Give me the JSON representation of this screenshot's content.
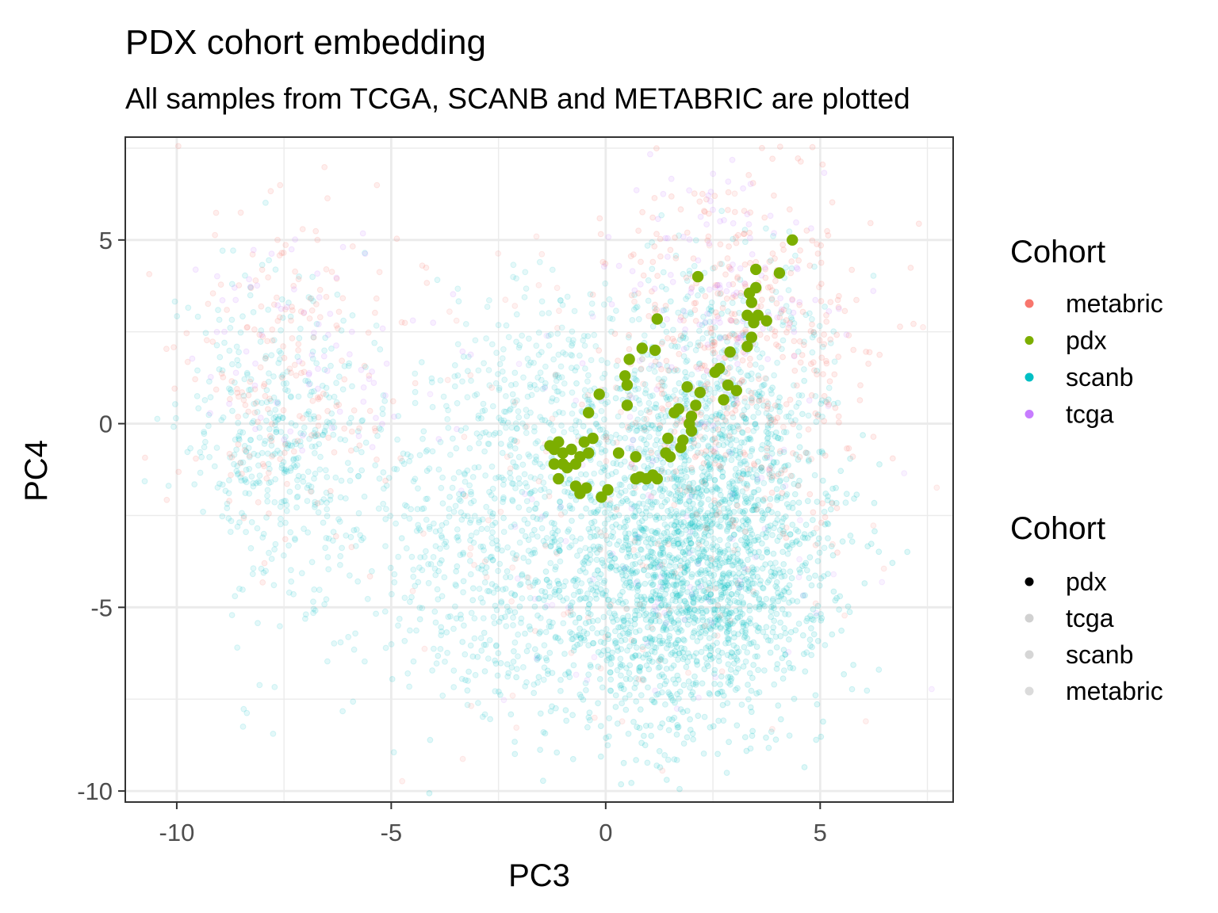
{
  "chart_data": {
    "type": "scatter",
    "title": "PDX cohort embedding",
    "subtitle": "All samples from TCGA, SCANB and METABRIC are plotted",
    "xlabel": "PC3",
    "ylabel": "PC4",
    "xlim": [
      -11.2,
      8.1
    ],
    "ylim": [
      -10.3,
      7.8
    ],
    "x_ticks": [
      "-10",
      "-5",
      "0",
      "5"
    ],
    "x_tick_values": [
      -10,
      -5,
      0,
      5
    ],
    "y_ticks": [
      "-10",
      "-5",
      "0",
      "5"
    ],
    "y_tick_values": [
      -10,
      -5,
      0,
      5
    ],
    "grid": true,
    "legend_placement": "right",
    "colors": {
      "metabric": "#F8766D",
      "pdx": "#7CAE00",
      "scanb": "#00BFC4",
      "tcga": "#C77CFF"
    },
    "legend_color": {
      "title": "Cohort",
      "items": [
        "metabric",
        "pdx",
        "scanb",
        "tcga"
      ]
    },
    "legend_alpha": {
      "title": "Cohort",
      "items": [
        "pdx",
        "tcga",
        "scanb",
        "metabric"
      ]
    },
    "series": [
      {
        "name": "pdx",
        "points": [
          [
            -1.3,
            -0.6
          ],
          [
            -1.2,
            -0.7
          ],
          [
            -1.1,
            -0.5
          ],
          [
            -1.0,
            -0.8
          ],
          [
            -1.2,
            -1.1
          ],
          [
            -1.0,
            -1.1
          ],
          [
            -0.9,
            -1.2
          ],
          [
            -0.8,
            -0.7
          ],
          [
            -0.7,
            -1.1
          ],
          [
            -0.6,
            -0.9
          ],
          [
            -0.5,
            -0.5
          ],
          [
            -0.4,
            -0.8
          ],
          [
            -0.3,
            -0.4
          ],
          [
            -0.4,
            0.3
          ],
          [
            -0.15,
            0.8
          ],
          [
            -1.1,
            -1.5
          ],
          [
            -0.7,
            -1.7
          ],
          [
            -0.6,
            -1.9
          ],
          [
            -0.45,
            -1.75
          ],
          [
            -0.1,
            -2.0
          ],
          [
            0.05,
            -1.8
          ],
          [
            0.3,
            -0.8
          ],
          [
            0.45,
            1.3
          ],
          [
            0.5,
            1.05
          ],
          [
            0.5,
            0.5
          ],
          [
            0.55,
            1.75
          ],
          [
            0.7,
            -0.9
          ],
          [
            0.7,
            -1.5
          ],
          [
            0.8,
            -1.45
          ],
          [
            0.85,
            2.05
          ],
          [
            0.95,
            -1.5
          ],
          [
            1.1,
            -1.4
          ],
          [
            1.15,
            2.0
          ],
          [
            1.2,
            -1.5
          ],
          [
            1.2,
            2.85
          ],
          [
            1.4,
            -0.8
          ],
          [
            1.45,
            -0.4
          ],
          [
            1.5,
            -0.9
          ],
          [
            1.6,
            0.3
          ],
          [
            1.7,
            0.4
          ],
          [
            1.75,
            -0.65
          ],
          [
            1.8,
            -0.45
          ],
          [
            1.9,
            1.0
          ],
          [
            1.95,
            0.0
          ],
          [
            2.0,
            0.2
          ],
          [
            2.0,
            -0.2
          ],
          [
            2.1,
            0.5
          ],
          [
            2.15,
            4.0
          ],
          [
            2.2,
            0.85
          ],
          [
            2.55,
            1.4
          ],
          [
            2.65,
            1.5
          ],
          [
            2.75,
            0.65
          ],
          [
            2.85,
            1.05
          ],
          [
            2.9,
            1.95
          ],
          [
            3.05,
            0.9
          ],
          [
            3.3,
            2.1
          ],
          [
            3.3,
            2.95
          ],
          [
            3.35,
            3.55
          ],
          [
            3.4,
            2.35
          ],
          [
            3.4,
            3.3
          ],
          [
            3.45,
            2.75
          ],
          [
            3.5,
            3.7
          ],
          [
            3.5,
            4.2
          ],
          [
            3.55,
            2.95
          ],
          [
            3.75,
            2.8
          ],
          [
            4.05,
            4.1
          ],
          [
            4.35,
            5.0
          ]
        ]
      }
    ]
  }
}
